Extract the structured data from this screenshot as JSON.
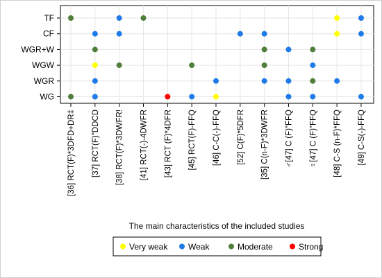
{
  "chart_data": {
    "type": "scatter",
    "title": "The main characteristics of the included studies",
    "categories_x": [
      "[36] RCT(F)*3DFD+DR‡",
      "[37] RCT(F)\"DDCD",
      "[38] RCT(F)*3DWFR!",
      "[41] RCT(-)-4DWFR",
      "[43] RCT (F)*4DFR",
      "[45] RCT(F)-FFQ",
      "[46] C-C(-)-FFQ",
      "[52] C(F)*5DFR",
      "[35] C(n-F)*3DWFR",
      "♂[47] C (F)\"FFQ",
      "♀[47] C (F)\"FFQ",
      "[48] C-S (n-F)*FFQ",
      "[49] C-S(-)-FFQ"
    ],
    "categories_y": [
      "TF",
      "CF",
      "WGR+W",
      "WGW",
      "WGR",
      "WG"
    ],
    "legend": [
      {
        "key": "very_weak",
        "label": "Very weak",
        "color": "#ffff00"
      },
      {
        "key": "weak",
        "label": "Weak",
        "color": "#1f7be8"
      },
      {
        "key": "moderate",
        "label": "Moderate",
        "color": "#4f7f3a"
      },
      {
        "key": "strong",
        "label": "Strong",
        "color": "#ff0000"
      }
    ],
    "legend_position": "bottom",
    "grid": true,
    "points": [
      {
        "x": "[36] RCT(F)*3DFD+DR‡",
        "y": "TF",
        "level": "moderate"
      },
      {
        "x": "[38] RCT(F)*3DWFR!",
        "y": "TF",
        "level": "weak"
      },
      {
        "x": "[41] RCT(-)-4DWFR",
        "y": "TF",
        "level": "moderate"
      },
      {
        "x": "[48] C-S (n-F)*FFQ",
        "y": "TF",
        "level": "very_weak"
      },
      {
        "x": "[49] C-S(-)-FFQ",
        "y": "TF",
        "level": "weak"
      },
      {
        "x": "[37] RCT(F)\"DDCD",
        "y": "CF",
        "level": "weak"
      },
      {
        "x": "[38] RCT(F)*3DWFR!",
        "y": "CF",
        "level": "weak"
      },
      {
        "x": "[52] C(F)*5DFR",
        "y": "CF",
        "level": "weak"
      },
      {
        "x": "[35] C(n-F)*3DWFR",
        "y": "CF",
        "level": "weak"
      },
      {
        "x": "[48] C-S (n-F)*FFQ",
        "y": "CF",
        "level": "very_weak"
      },
      {
        "x": "[49] C-S(-)-FFQ",
        "y": "CF",
        "level": "weak"
      },
      {
        "x": "[37] RCT(F)\"DDCD",
        "y": "WGR+W",
        "level": "moderate"
      },
      {
        "x": "[35] C(n-F)*3DWFR",
        "y": "WGR+W",
        "level": "moderate"
      },
      {
        "x": "♂[47] C (F)\"FFQ",
        "y": "WGR+W",
        "level": "weak"
      },
      {
        "x": "♀[47] C (F)\"FFQ",
        "y": "WGR+W",
        "level": "moderate"
      },
      {
        "x": "[37] RCT(F)\"DDCD",
        "y": "WGW",
        "level": "very_weak"
      },
      {
        "x": "[38] RCT(F)*3DWFR!",
        "y": "WGW",
        "level": "moderate"
      },
      {
        "x": "[45] RCT(F)-FFQ",
        "y": "WGW",
        "level": "moderate"
      },
      {
        "x": "[35] C(n-F)*3DWFR",
        "y": "WGW",
        "level": "moderate"
      },
      {
        "x": "♀[47] C (F)\"FFQ",
        "y": "WGW",
        "level": "weak"
      },
      {
        "x": "[37] RCT(F)\"DDCD",
        "y": "WGR",
        "level": "weak"
      },
      {
        "x": "[46] C-C(-)-FFQ",
        "y": "WGR",
        "level": "weak"
      },
      {
        "x": "[35] C(n-F)*3DWFR",
        "y": "WGR",
        "level": "weak"
      },
      {
        "x": "♂[47] C (F)\"FFQ",
        "y": "WGR",
        "level": "weak"
      },
      {
        "x": "♀[47] C (F)\"FFQ",
        "y": "WGR",
        "level": "moderate"
      },
      {
        "x": "[48] C-S (n-F)*FFQ",
        "y": "WGR",
        "level": "weak"
      },
      {
        "x": "[36] RCT(F)*3DFD+DR‡",
        "y": "WG",
        "level": "moderate"
      },
      {
        "x": "[37] RCT(F)\"DDCD",
        "y": "WG",
        "level": "weak"
      },
      {
        "x": "[43] RCT (F)*4DFR",
        "y": "WG",
        "level": "strong"
      },
      {
        "x": "[45] RCT(F)-FFQ",
        "y": "WG",
        "level": "weak"
      },
      {
        "x": "[46] C-C(-)-FFQ",
        "y": "WG",
        "level": "very_weak"
      },
      {
        "x": "♂[47] C (F)\"FFQ",
        "y": "WG",
        "level": "weak"
      },
      {
        "x": "♀[47] C (F)\"FFQ",
        "y": "WG",
        "level": "weak"
      },
      {
        "x": "[49] C-S(-)-FFQ",
        "y": "WG",
        "level": "weak"
      }
    ]
  }
}
